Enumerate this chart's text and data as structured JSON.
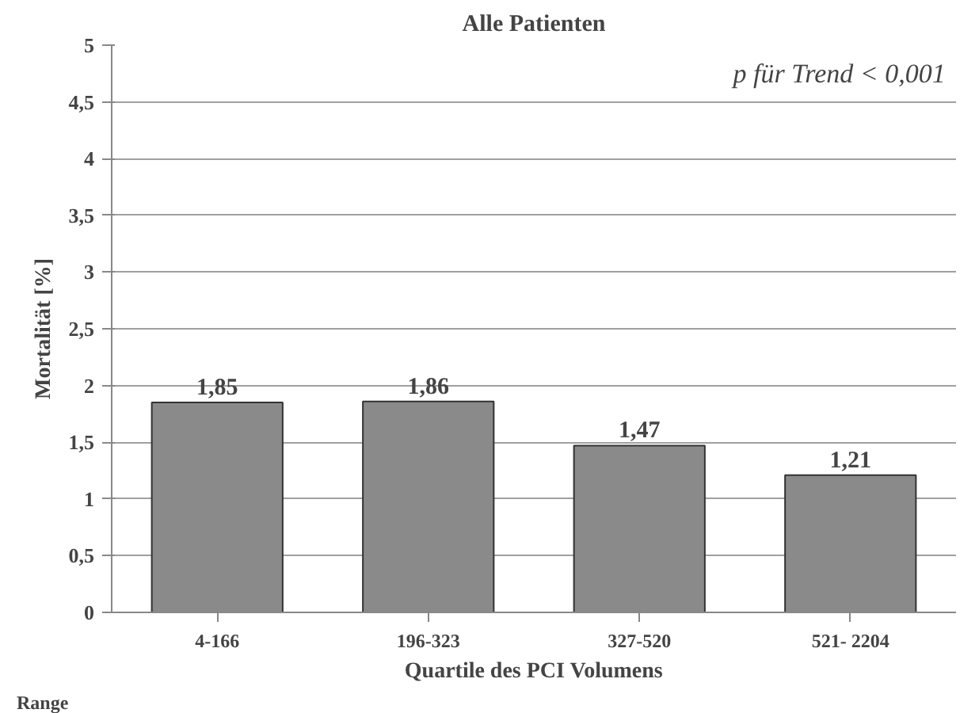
{
  "chart_data": {
    "type": "bar",
    "title": "Alle Patienten",
    "xlabel": "Quartile des PCI Volumens",
    "ylabel": "Mortalität [%]",
    "categories": [
      "4-166",
      "196-323",
      "327-520",
      "521- 2204"
    ],
    "values": [
      1.85,
      1.86,
      1.47,
      1.21
    ],
    "value_labels": [
      "1,85",
      "1,86",
      "1,47",
      "1,21"
    ],
    "color": "#8a8a8a",
    "ylim": [
      0,
      5
    ],
    "yticks": [
      0,
      {
        "value": 0.5,
        "label": "0,5"
      },
      1,
      {
        "value": 1.5,
        "label": "1,5"
      },
      2,
      {
        "value": 2.5,
        "label": "2,5"
      },
      3,
      {
        "value": 3.5,
        "label": "3,5"
      },
      4,
      {
        "value": 4.5,
        "label": "4,5"
      },
      5
    ],
    "grid": "y",
    "annotations": [
      "p für Trend < 0,001",
      "Range"
    ]
  }
}
